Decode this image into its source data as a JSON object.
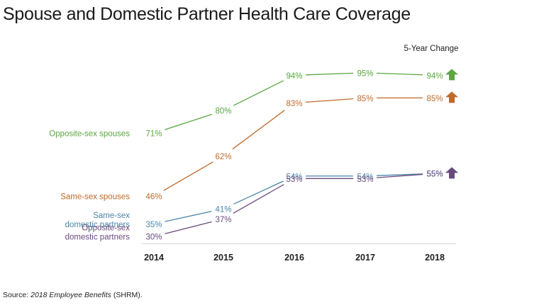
{
  "title": "Spouse and Domestic Partner Health Care Coverage",
  "chart_data": {
    "type": "line",
    "title": "Spouse and Domestic Partner Health Care Coverage",
    "x": [
      "2014",
      "2015",
      "2016",
      "2017",
      "2018"
    ],
    "ylim": [
      25,
      100
    ],
    "grid": false,
    "legend": "inline labels at left",
    "change_header": "5-Year Change",
    "value_suffix": "%",
    "series": [
      {
        "name": "Opposite-sex spouses",
        "values": [
          71,
          80,
          94,
          95,
          94
        ],
        "color": "#5aa640",
        "change": "up"
      },
      {
        "name": "Same-sex spouses",
        "values": [
          46,
          62,
          83,
          85,
          85
        ],
        "color": "#c0692a",
        "change": "up"
      },
      {
        "name": "Same-sex domestic partners",
        "values": [
          35,
          41,
          54,
          54,
          55
        ],
        "color": "#4a86a8",
        "change": "up"
      },
      {
        "name": "Opposite-sex domestic partners",
        "values": [
          30,
          37,
          53,
          53,
          55
        ],
        "color": "#6a4a7e",
        "change": "up"
      }
    ]
  },
  "source": {
    "prefix": "Source: ",
    "publication": "2018 Employee Benefits",
    "suffix": " (SHRM)."
  }
}
